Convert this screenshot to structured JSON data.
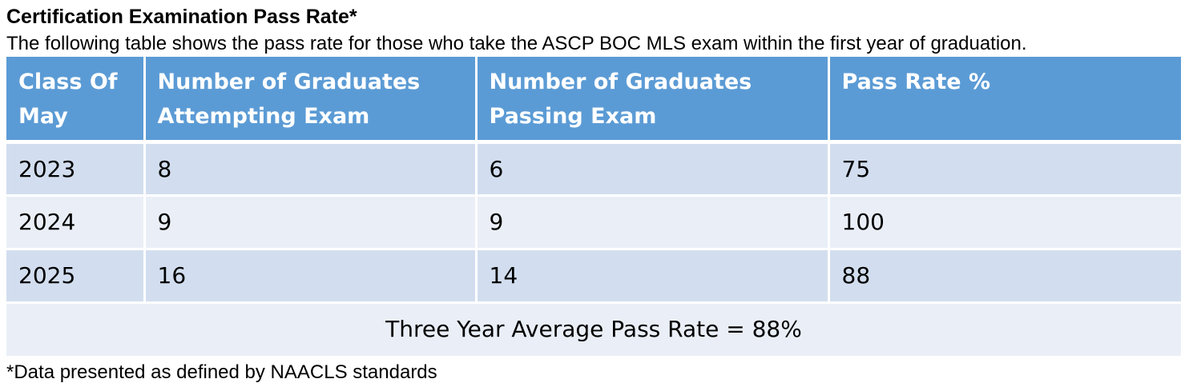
{
  "document": {
    "title": "Certification Examination Pass Rate*",
    "description": "The following table shows the pass rate for those who take the ASCP BOC MLS exam within the first year of graduation.",
    "footnote": "*Data presented as defined by NAACLS standards"
  },
  "table": {
    "headers": [
      [
        "Class Of",
        "May"
      ],
      [
        "Number of Graduates",
        "Attempting Exam"
      ],
      [
        "Number of Graduates",
        "Passing Exam"
      ],
      [
        "Pass Rate %"
      ]
    ],
    "rows": [
      {
        "class_of": "2023",
        "attempting": "8",
        "passing": "6",
        "pass_rate": "75"
      },
      {
        "class_of": "2024",
        "attempting": "9",
        "passing": "9",
        "pass_rate": "100"
      },
      {
        "class_of": "2025",
        "attempting": "16",
        "passing": "14",
        "pass_rate": "88"
      }
    ],
    "summary": "Three Year Average Pass Rate = 88%"
  },
  "colors": {
    "header_bg": "#5b9bd5",
    "header_text": "#ffffff",
    "row_dark": "#d2deef",
    "row_light": "#eaeff7"
  }
}
